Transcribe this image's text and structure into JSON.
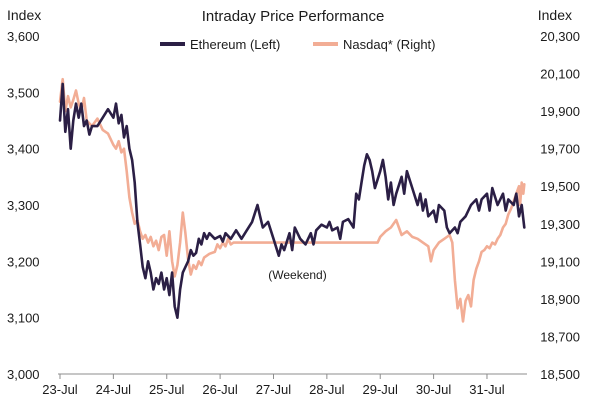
{
  "chart_data": {
    "type": "line",
    "title": "Intraday Price Performance",
    "y_left": {
      "label": "Index",
      "ticks": [
        "3,000",
        "3,100",
        "3,200",
        "3,300",
        "3,400",
        "3,500",
        "3,600"
      ],
      "range": [
        3000,
        3600
      ]
    },
    "y_right": {
      "label": "Index",
      "ticks": [
        "18,500",
        "18,700",
        "18,900",
        "19,100",
        "19,300",
        "19,500",
        "19,700",
        "19,900",
        "20,100",
        "20,300"
      ],
      "range": [
        18500,
        20300
      ]
    },
    "x_ticks": [
      "23-Jul",
      "24-Jul",
      "25-Jul",
      "26-Jul",
      "27-Jul",
      "28-Jul",
      "29-Jul",
      "30-Jul",
      "31-Jul"
    ],
    "x_range": [
      0,
      8.75
    ],
    "annotation": {
      "text": "(Weekend)",
      "x": 4.45,
      "y": 19005
    },
    "legend_position": "top-center",
    "series": [
      {
        "name": "Ethereum (Left)",
        "axis": "left",
        "color": "#2b1f45",
        "points": [
          [
            0,
            3450
          ],
          [
            0.05,
            3515
          ],
          [
            0.1,
            3430
          ],
          [
            0.15,
            3470
          ],
          [
            0.2,
            3400
          ],
          [
            0.25,
            3450
          ],
          [
            0.3,
            3480
          ],
          [
            0.35,
            3455
          ],
          [
            0.4,
            3480
          ],
          [
            0.45,
            3440
          ],
          [
            0.5,
            3450
          ],
          [
            0.55,
            3425
          ],
          [
            0.6,
            3440
          ],
          [
            0.7,
            3440
          ],
          [
            0.8,
            3455
          ],
          [
            0.9,
            3470
          ],
          [
            1.0,
            3455
          ],
          [
            1.05,
            3480
          ],
          [
            1.1,
            3445
          ],
          [
            1.15,
            3460
          ],
          [
            1.2,
            3420
          ],
          [
            1.25,
            3440
          ],
          [
            1.3,
            3400
          ],
          [
            1.35,
            3380
          ],
          [
            1.4,
            3340
          ],
          [
            1.45,
            3270
          ],
          [
            1.5,
            3230
          ],
          [
            1.55,
            3190
          ],
          [
            1.6,
            3170
          ],
          [
            1.65,
            3200
          ],
          [
            1.7,
            3180
          ],
          [
            1.75,
            3150
          ],
          [
            1.8,
            3170
          ],
          [
            1.85,
            3160
          ],
          [
            1.9,
            3180
          ],
          [
            1.95,
            3150
          ],
          [
            2.0,
            3170
          ],
          [
            2.05,
            3140
          ],
          [
            2.1,
            3180
          ],
          [
            2.15,
            3120
          ],
          [
            2.2,
            3100
          ],
          [
            2.25,
            3150
          ],
          [
            2.3,
            3180
          ],
          [
            2.35,
            3190
          ],
          [
            2.4,
            3200
          ],
          [
            2.45,
            3220
          ],
          [
            2.5,
            3210
          ],
          [
            2.55,
            3215
          ],
          [
            2.6,
            3240
          ],
          [
            2.65,
            3230
          ],
          [
            2.7,
            3250
          ],
          [
            2.75,
            3240
          ],
          [
            2.8,
            3250
          ],
          [
            2.9,
            3240
          ],
          [
            3.0,
            3245
          ],
          [
            3.05,
            3235
          ],
          [
            3.1,
            3250
          ],
          [
            3.2,
            3240
          ],
          [
            3.3,
            3255
          ],
          [
            3.4,
            3240
          ],
          [
            3.5,
            3255
          ],
          [
            3.6,
            3270
          ],
          [
            3.7,
            3300
          ],
          [
            3.75,
            3280
          ],
          [
            3.8,
            3260
          ],
          [
            3.9,
            3270
          ],
          [
            4.0,
            3240
          ],
          [
            4.1,
            3210
          ],
          [
            4.15,
            3230
          ],
          [
            4.2,
            3220
          ],
          [
            4.3,
            3250
          ],
          [
            4.35,
            3220
          ],
          [
            4.4,
            3260
          ],
          [
            4.5,
            3240
          ],
          [
            4.6,
            3230
          ],
          [
            4.7,
            3250
          ],
          [
            4.75,
            3230
          ],
          [
            4.8,
            3255
          ],
          [
            4.9,
            3265
          ],
          [
            5.0,
            3260
          ],
          [
            5.05,
            3270
          ],
          [
            5.1,
            3255
          ],
          [
            5.2,
            3260
          ],
          [
            5.25,
            3240
          ],
          [
            5.3,
            3270
          ],
          [
            5.4,
            3275
          ],
          [
            5.5,
            3260
          ],
          [
            5.55,
            3320
          ],
          [
            5.6,
            3310
          ],
          [
            5.65,
            3340
          ],
          [
            5.7,
            3370
          ],
          [
            5.75,
            3390
          ],
          [
            5.8,
            3380
          ],
          [
            5.85,
            3360
          ],
          [
            5.9,
            3330
          ],
          [
            6.0,
            3360
          ],
          [
            6.05,
            3380
          ],
          [
            6.1,
            3350
          ],
          [
            6.15,
            3310
          ],
          [
            6.2,
            3340
          ],
          [
            6.25,
            3300
          ],
          [
            6.3,
            3320
          ],
          [
            6.4,
            3350
          ],
          [
            6.45,
            3320
          ],
          [
            6.5,
            3360
          ],
          [
            6.6,
            3330
          ],
          [
            6.7,
            3300
          ],
          [
            6.75,
            3320
          ],
          [
            6.8,
            3290
          ],
          [
            6.85,
            3310
          ],
          [
            6.9,
            3280
          ],
          [
            7.0,
            3290
          ],
          [
            7.05,
            3270
          ],
          [
            7.1,
            3300
          ],
          [
            7.2,
            3290
          ],
          [
            7.25,
            3260
          ],
          [
            7.3,
            3250
          ],
          [
            7.4,
            3260
          ],
          [
            7.45,
            3250
          ],
          [
            7.5,
            3270
          ],
          [
            7.6,
            3280
          ],
          [
            7.7,
            3300
          ],
          [
            7.8,
            3310
          ],
          [
            7.85,
            3290
          ],
          [
            7.9,
            3310
          ],
          [
            8.0,
            3320
          ],
          [
            8.05,
            3290
          ],
          [
            8.1,
            3330
          ],
          [
            8.2,
            3300
          ],
          [
            8.3,
            3320
          ],
          [
            8.35,
            3290
          ],
          [
            8.4,
            3310
          ],
          [
            8.5,
            3300
          ],
          [
            8.55,
            3320
          ],
          [
            8.6,
            3280
          ],
          [
            8.65,
            3300
          ],
          [
            8.7,
            3260
          ]
        ]
      },
      {
        "name": "Nasdaq* (Right)",
        "axis": "right",
        "color": "#f2ad95",
        "points": [
          [
            0,
            19950
          ],
          [
            0.05,
            20070
          ],
          [
            0.1,
            19900
          ],
          [
            0.15,
            19980
          ],
          [
            0.2,
            19920
          ],
          [
            0.25,
            19960
          ],
          [
            0.3,
            20010
          ],
          [
            0.35,
            19940
          ],
          [
            0.4,
            19900
          ],
          [
            0.45,
            19970
          ],
          [
            0.5,
            19850
          ],
          [
            0.6,
            19820
          ],
          [
            0.7,
            19860
          ],
          [
            0.8,
            19800
          ],
          [
            0.9,
            19780
          ],
          [
            1.0,
            19720
          ],
          [
            1.05,
            19700
          ],
          [
            1.1,
            19740
          ],
          [
            1.15,
            19680
          ],
          [
            1.2,
            19700
          ],
          [
            1.25,
            19580
          ],
          [
            1.3,
            19440
          ],
          [
            1.35,
            19360
          ],
          [
            1.4,
            19300
          ],
          [
            1.45,
            19320
          ],
          [
            1.5,
            19260
          ],
          [
            1.55,
            19220
          ],
          [
            1.6,
            19240
          ],
          [
            1.65,
            19200
          ],
          [
            1.7,
            19230
          ],
          [
            1.75,
            19180
          ],
          [
            1.8,
            19210
          ],
          [
            1.85,
            19160
          ],
          [
            1.9,
            19230
          ],
          [
            1.95,
            19240
          ],
          [
            2.0,
            19130
          ],
          [
            2.05,
            19260
          ],
          [
            2.1,
            19100
          ],
          [
            2.15,
            19020
          ],
          [
            2.2,
            19080
          ],
          [
            2.25,
            19200
          ],
          [
            2.3,
            19360
          ],
          [
            2.35,
            19250
          ],
          [
            2.4,
            19110
          ],
          [
            2.45,
            19030
          ],
          [
            2.5,
            19080
          ],
          [
            2.55,
            19060
          ],
          [
            2.6,
            19100
          ],
          [
            2.65,
            19080
          ],
          [
            2.7,
            19120
          ],
          [
            2.8,
            19140
          ],
          [
            2.9,
            19150
          ],
          [
            2.95,
            19190
          ],
          [
            3.0,
            19170
          ],
          [
            3.05,
            19200
          ],
          [
            3.1,
            19180
          ],
          [
            3.15,
            19220
          ],
          [
            3.2,
            19190
          ],
          [
            3.25,
            19200
          ],
          [
            5.95,
            19200
          ],
          [
            6.0,
            19230
          ],
          [
            6.1,
            19260
          ],
          [
            6.2,
            19280
          ],
          [
            6.3,
            19320
          ],
          [
            6.35,
            19280
          ],
          [
            6.4,
            19240
          ],
          [
            6.5,
            19260
          ],
          [
            6.6,
            19230
          ],
          [
            6.7,
            19220
          ],
          [
            6.8,
            19200
          ],
          [
            6.9,
            19180
          ],
          [
            6.95,
            19100
          ],
          [
            7.0,
            19160
          ],
          [
            7.1,
            19200
          ],
          [
            7.2,
            19220
          ],
          [
            7.3,
            19240
          ],
          [
            7.35,
            19200
          ],
          [
            7.4,
            19000
          ],
          [
            7.45,
            18850
          ],
          [
            7.5,
            18900
          ],
          [
            7.55,
            18780
          ],
          [
            7.6,
            18890
          ],
          [
            7.65,
            18920
          ],
          [
            7.7,
            18860
          ],
          [
            7.75,
            19000
          ],
          [
            7.8,
            19060
          ],
          [
            7.85,
            19100
          ],
          [
            7.9,
            19150
          ],
          [
            7.95,
            19160
          ],
          [
            8.0,
            19180
          ],
          [
            8.05,
            19170
          ],
          [
            8.1,
            19200
          ],
          [
            8.15,
            19190
          ],
          [
            8.2,
            19220
          ],
          [
            8.25,
            19240
          ],
          [
            8.3,
            19280
          ],
          [
            8.35,
            19300
          ],
          [
            8.4,
            19350
          ],
          [
            8.45,
            19380
          ],
          [
            8.5,
            19420
          ],
          [
            8.55,
            19460
          ],
          [
            8.6,
            19500
          ],
          [
            8.62,
            19400
          ],
          [
            8.65,
            19520
          ],
          [
            8.68,
            19460
          ],
          [
            8.7,
            19510
          ]
        ]
      }
    ]
  }
}
